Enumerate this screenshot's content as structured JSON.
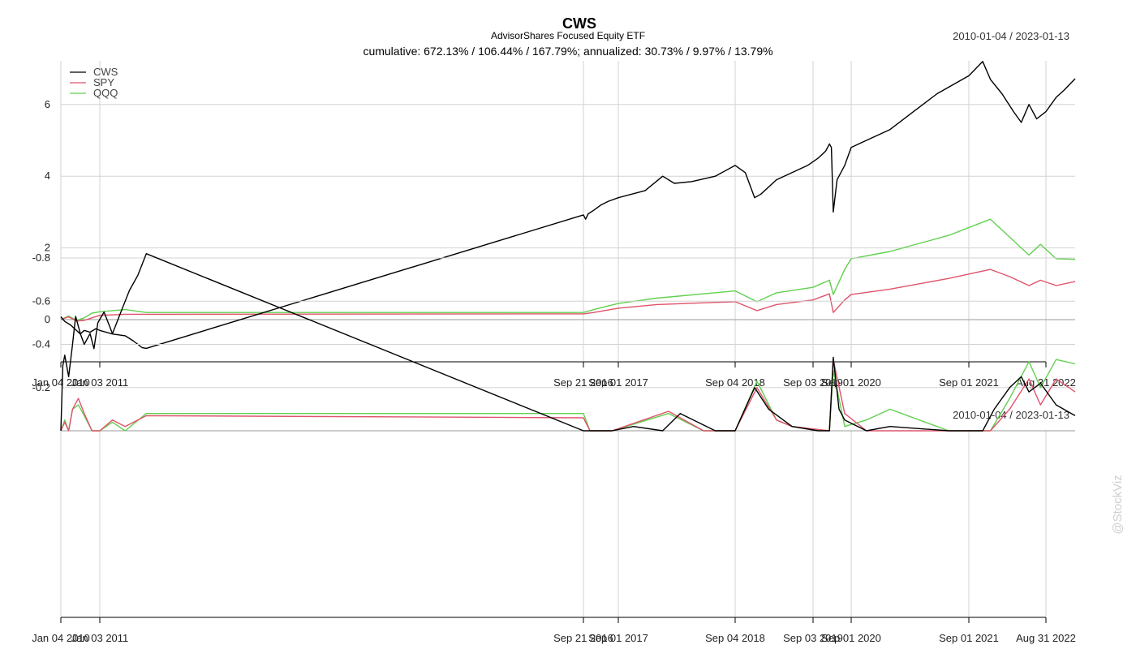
{
  "header": {
    "title": "CWS",
    "subtitle": "AdvisorShares Focused Equity ETF",
    "stats": "cumulative: 672.13% / 106.44% / 167.79%; annualized: 30.73% / 9.97% / 13.79%",
    "date_range": "2010-01-04 / 2023-01-13"
  },
  "watermark": "@StockViz",
  "colors": {
    "CWS": "#000000",
    "SPY": "#df536b",
    "QQQ": "#61d04f",
    "grid": "#d3d3d3"
  },
  "chart_data": [
    {
      "type": "line",
      "name": "cumulative-returns",
      "date_range_label": "2010-01-04 / 2023-01-13",
      "x_tick_labels": [
        "Jan 04 2010",
        "Jan 03 2011",
        "Sep 21 2016",
        "Sep 01 2017",
        "Sep 04 2018",
        "Sep 03 2019",
        "Sep 01 2020",
        "Sep 01 2021",
        "Aug 31 2022"
      ],
      "y_ticks": [
        0,
        2,
        4,
        6
      ],
      "ylim": [
        -1.15,
        7.3
      ],
      "legend": {
        "position": "top-left",
        "entries": [
          "CWS",
          "SPY",
          "QQQ"
        ]
      },
      "grid": true,
      "series": [
        {
          "name": "CWS",
          "points": [
            [
              2010.0,
              0.08
            ],
            [
              2010.1,
              -0.05
            ],
            [
              2010.25,
              -0.15
            ],
            [
              2010.4,
              -0.3
            ],
            [
              2010.5,
              -0.4
            ],
            [
              2010.6,
              -0.3
            ],
            [
              2010.75,
              -0.35
            ],
            [
              2010.9,
              -0.25
            ],
            [
              2011.0,
              -0.3
            ],
            [
              2011.15,
              -0.4
            ],
            [
              2011.3,
              -0.45
            ],
            [
              2011.4,
              -0.6
            ],
            [
              2011.5,
              -0.78
            ],
            [
              2011.55,
              -0.8
            ],
            [
              2016.72,
              2.92
            ],
            [
              2016.78,
              2.8
            ],
            [
              2016.85,
              2.95
            ],
            [
              2017.0,
              3.05
            ],
            [
              2017.2,
              3.2
            ],
            [
              2017.4,
              3.3
            ],
            [
              2017.67,
              3.4
            ],
            [
              2017.9,
              3.6
            ],
            [
              2018.05,
              4.0
            ],
            [
              2018.15,
              3.8
            ],
            [
              2018.3,
              3.85
            ],
            [
              2018.5,
              4.0
            ],
            [
              2018.67,
              4.3
            ],
            [
              2018.8,
              4.1
            ],
            [
              2018.92,
              3.4
            ],
            [
              2019.0,
              3.5
            ],
            [
              2019.2,
              3.9
            ],
            [
              2019.4,
              4.1
            ],
            [
              2019.6,
              4.3
            ],
            [
              2019.8,
              4.5
            ],
            [
              2020.0,
              4.7
            ],
            [
              2020.1,
              4.9
            ],
            [
              2020.15,
              4.8
            ],
            [
              2020.2,
              3.0
            ],
            [
              2020.3,
              3.9
            ],
            [
              2020.5,
              4.3
            ],
            [
              2020.67,
              4.8
            ],
            [
              2020.8,
              5.0
            ],
            [
              2021.0,
              5.3
            ],
            [
              2021.2,
              5.8
            ],
            [
              2021.4,
              6.3
            ],
            [
              2021.67,
              6.8
            ],
            [
              2021.85,
              7.2
            ],
            [
              2021.95,
              6.7
            ],
            [
              2022.1,
              6.3
            ],
            [
              2022.25,
              5.8
            ],
            [
              2022.35,
              5.5
            ],
            [
              2022.45,
              6.0
            ],
            [
              2022.55,
              5.6
            ],
            [
              2022.67,
              5.8
            ],
            [
              2022.8,
              6.2
            ],
            [
              2022.9,
              6.4
            ],
            [
              2023.04,
              6.72
            ]
          ]
        },
        {
          "name": "SPY",
          "points": [
            [
              2010.0,
              0.0
            ],
            [
              2010.2,
              0.08
            ],
            [
              2010.4,
              -0.04
            ],
            [
              2010.6,
              -0.02
            ],
            [
              2010.8,
              0.05
            ],
            [
              2011.0,
              0.12
            ],
            [
              2011.3,
              0.15
            ],
            [
              2011.55,
              0.15
            ],
            [
              2016.72,
              0.16
            ],
            [
              2017.0,
              0.2
            ],
            [
              2017.67,
              0.32
            ],
            [
              2018.0,
              0.42
            ],
            [
              2018.67,
              0.5
            ],
            [
              2018.95,
              0.25
            ],
            [
              2019.2,
              0.42
            ],
            [
              2019.67,
              0.55
            ],
            [
              2020.1,
              0.72
            ],
            [
              2020.2,
              0.2
            ],
            [
              2020.5,
              0.55
            ],
            [
              2020.67,
              0.7
            ],
            [
              2021.0,
              0.85
            ],
            [
              2021.5,
              1.15
            ],
            [
              2021.95,
              1.4
            ],
            [
              2022.2,
              1.2
            ],
            [
              2022.45,
              0.95
            ],
            [
              2022.6,
              1.1
            ],
            [
              2022.8,
              0.95
            ],
            [
              2023.04,
              1.06
            ]
          ]
        },
        {
          "name": "QQQ",
          "points": [
            [
              2010.0,
              0.0
            ],
            [
              2010.2,
              0.1
            ],
            [
              2010.4,
              -0.02
            ],
            [
              2010.6,
              0.05
            ],
            [
              2010.8,
              0.18
            ],
            [
              2011.0,
              0.22
            ],
            [
              2011.3,
              0.28
            ],
            [
              2011.55,
              0.2
            ],
            [
              2016.72,
              0.2
            ],
            [
              2017.0,
              0.28
            ],
            [
              2017.67,
              0.45
            ],
            [
              2018.0,
              0.6
            ],
            [
              2018.67,
              0.8
            ],
            [
              2018.95,
              0.5
            ],
            [
              2019.2,
              0.75
            ],
            [
              2019.67,
              0.9
            ],
            [
              2020.1,
              1.1
            ],
            [
              2020.2,
              0.7
            ],
            [
              2020.5,
              1.4
            ],
            [
              2020.67,
              1.7
            ],
            [
              2021.0,
              1.9
            ],
            [
              2021.5,
              2.35
            ],
            [
              2021.95,
              2.8
            ],
            [
              2022.2,
              2.3
            ],
            [
              2022.45,
              1.8
            ],
            [
              2022.6,
              2.1
            ],
            [
              2022.8,
              1.7
            ],
            [
              2023.04,
              1.68
            ]
          ]
        }
      ]
    },
    {
      "type": "line",
      "name": "drawdowns",
      "date_range_label": "2010-01-04 / 2023-01-13",
      "x_tick_labels": [
        "Jan 04 2010",
        "Jan 03 2011",
        "Sep 21 2016",
        "Sep 01 2017",
        "Sep 04 2018",
        "Sep 03 2019",
        "Sep 01 2020",
        "Sep 01 2021",
        "Aug 31 2022"
      ],
      "y_ticks": [
        -0.2,
        -0.4,
        -0.6,
        -0.8
      ],
      "ylim": [
        -0.84,
        0.0
      ],
      "grid": true,
      "series": [
        {
          "name": "CWS",
          "points": [
            [
              2010.0,
              0.0
            ],
            [
              2010.05,
              -0.3
            ],
            [
              2010.1,
              -0.35
            ],
            [
              2010.2,
              -0.25
            ],
            [
              2010.3,
              -0.4
            ],
            [
              2010.38,
              -0.53
            ],
            [
              2010.5,
              -0.45
            ],
            [
              2010.6,
              -0.4
            ],
            [
              2010.75,
              -0.45
            ],
            [
              2010.85,
              -0.38
            ],
            [
              2010.95,
              -0.5
            ],
            [
              2011.05,
              -0.55
            ],
            [
              2011.15,
              -0.45
            ],
            [
              2011.25,
              -0.55
            ],
            [
              2011.35,
              -0.65
            ],
            [
              2011.45,
              -0.72
            ],
            [
              2011.55,
              -0.82
            ],
            [
              2016.72,
              0.0
            ],
            [
              2017.5,
              0.0
            ],
            [
              2017.8,
              -0.02
            ],
            [
              2018.05,
              0.0
            ],
            [
              2018.2,
              -0.08
            ],
            [
              2018.5,
              0.0
            ],
            [
              2018.67,
              0.0
            ],
            [
              2018.92,
              -0.2
            ],
            [
              2019.1,
              -0.1
            ],
            [
              2019.4,
              -0.02
            ],
            [
              2019.8,
              0.0
            ],
            [
              2020.1,
              0.0
            ],
            [
              2020.2,
              -0.34
            ],
            [
              2020.35,
              -0.1
            ],
            [
              2020.5,
              -0.05
            ],
            [
              2020.8,
              0.0
            ],
            [
              2021.0,
              -0.02
            ],
            [
              2021.5,
              0.0
            ],
            [
              2021.85,
              0.0
            ],
            [
              2022.0,
              -0.1
            ],
            [
              2022.2,
              -0.2
            ],
            [
              2022.35,
              -0.25
            ],
            [
              2022.45,
              -0.18
            ],
            [
              2022.6,
              -0.22
            ],
            [
              2022.8,
              -0.12
            ],
            [
              2023.04,
              -0.07
            ]
          ]
        },
        {
          "name": "SPY",
          "points": [
            [
              2010.0,
              0.0
            ],
            [
              2010.1,
              -0.04
            ],
            [
              2010.2,
              0.0
            ],
            [
              2010.3,
              -0.1
            ],
            [
              2010.45,
              -0.15
            ],
            [
              2010.6,
              -0.08
            ],
            [
              2010.8,
              0.0
            ],
            [
              2011.0,
              0.0
            ],
            [
              2011.15,
              -0.05
            ],
            [
              2011.3,
              -0.02
            ],
            [
              2011.55,
              -0.07
            ],
            [
              2016.72,
              -0.06
            ],
            [
              2016.9,
              0.0
            ],
            [
              2017.5,
              0.0
            ],
            [
              2018.1,
              -0.09
            ],
            [
              2018.4,
              0.0
            ],
            [
              2018.67,
              0.0
            ],
            [
              2018.95,
              -0.2
            ],
            [
              2019.2,
              -0.05
            ],
            [
              2019.4,
              -0.02
            ],
            [
              2020.1,
              0.0
            ],
            [
              2020.2,
              -0.33
            ],
            [
              2020.5,
              -0.08
            ],
            [
              2020.8,
              0.0
            ],
            [
              2021.5,
              0.0
            ],
            [
              2021.95,
              0.0
            ],
            [
              2022.2,
              -0.1
            ],
            [
              2022.45,
              -0.24
            ],
            [
              2022.6,
              -0.12
            ],
            [
              2022.8,
              -0.24
            ],
            [
              2023.04,
              -0.18
            ]
          ]
        },
        {
          "name": "QQQ",
          "points": [
            [
              2010.0,
              0.0
            ],
            [
              2010.1,
              -0.05
            ],
            [
              2010.2,
              0.0
            ],
            [
              2010.3,
              -0.1
            ],
            [
              2010.45,
              -0.12
            ],
            [
              2010.6,
              -0.07
            ],
            [
              2010.8,
              0.0
            ],
            [
              2011.0,
              0.0
            ],
            [
              2011.15,
              -0.04
            ],
            [
              2011.3,
              0.0
            ],
            [
              2011.55,
              -0.08
            ],
            [
              2016.72,
              -0.08
            ],
            [
              2016.9,
              0.0
            ],
            [
              2017.5,
              0.0
            ],
            [
              2018.1,
              -0.08
            ],
            [
              2018.4,
              0.0
            ],
            [
              2018.67,
              0.0
            ],
            [
              2018.95,
              -0.23
            ],
            [
              2019.2,
              -0.05
            ],
            [
              2019.4,
              -0.02
            ],
            [
              2020.1,
              0.0
            ],
            [
              2020.2,
              -0.28
            ],
            [
              2020.5,
              -0.02
            ],
            [
              2020.8,
              -0.05
            ],
            [
              2021.0,
              -0.1
            ],
            [
              2021.5,
              0.0
            ],
            [
              2021.95,
              0.0
            ],
            [
              2022.2,
              -0.15
            ],
            [
              2022.45,
              -0.32
            ],
            [
              2022.6,
              -0.2
            ],
            [
              2022.8,
              -0.33
            ],
            [
              2023.04,
              -0.31
            ]
          ]
        }
      ]
    }
  ]
}
